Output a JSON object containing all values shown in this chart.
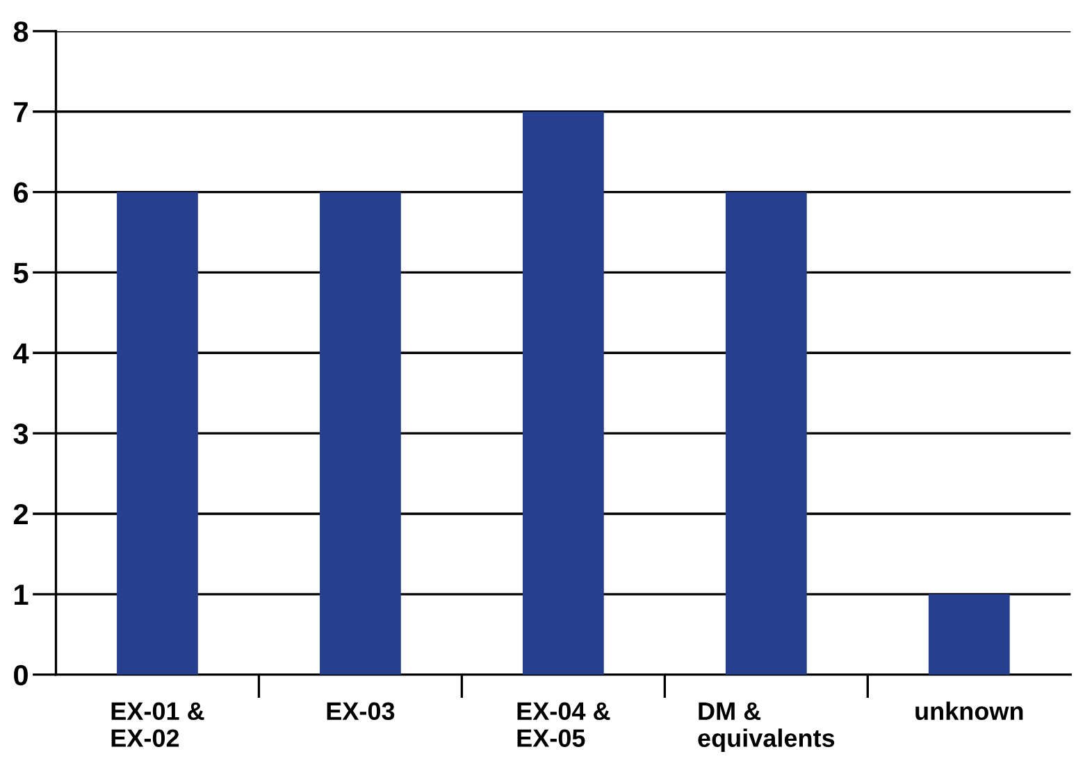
{
  "chart_data": {
    "type": "bar",
    "categories": [
      "EX-01 &\nEX-02",
      "EX-03",
      "EX-04 &\nEX-05",
      "DM &\nequivalents",
      "unknown"
    ],
    "values": [
      6,
      6,
      7,
      6,
      1
    ],
    "color": "#25408f",
    "ylim": [
      0,
      8
    ],
    "yticks": [
      0,
      1,
      2,
      3,
      4,
      5,
      6,
      7,
      8
    ],
    "grid": "y",
    "legend": false
  }
}
